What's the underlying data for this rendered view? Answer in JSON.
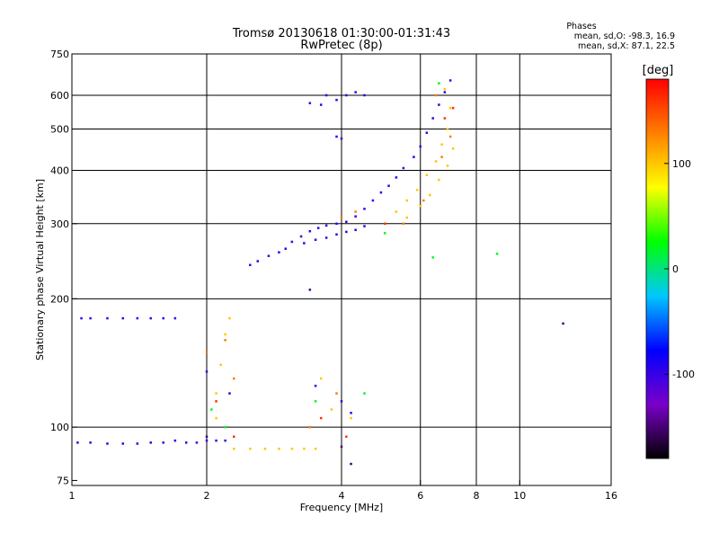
{
  "chart_data": {
    "type": "scatter",
    "title": "Tromsø 20130618 01:30:00-01:31:43",
    "subtitle": "RwPretec (8p)",
    "xlabel": "Frequency [MHz]",
    "ylabel": "Stationary phase Virtual Height [km]",
    "x_scale": "log",
    "y_scale": "log",
    "xlim": [
      1,
      16
    ],
    "ylim": [
      73,
      750
    ],
    "x_ticks": [
      1,
      2,
      4,
      6,
      8,
      10,
      16
    ],
    "y_ticks": [
      75,
      100,
      200,
      300,
      400,
      500,
      600,
      750
    ],
    "grid": true,
    "stats": {
      "heading": "Phases",
      "o_mode": "mean, sd,O: -98.3, 16.9",
      "x_mode": "mean, sd,X:  87.1, 22.5"
    },
    "colorbar": {
      "label": "[deg]",
      "range": [
        -180,
        180
      ],
      "ticks": [
        -100,
        0,
        100
      ],
      "colors": [
        "#000000",
        "#7a00c8",
        "#0000ff",
        "#00c8ff",
        "#00ff00",
        "#ffff00",
        "#ff8000",
        "#ff0000"
      ]
    },
    "series": [
      {
        "phase_deg": -100,
        "points": [
          [
            1.03,
            92
          ],
          [
            1.1,
            92
          ],
          [
            1.2,
            91.5
          ],
          [
            1.3,
            91.5
          ],
          [
            1.4,
            91.5
          ],
          [
            1.5,
            92
          ],
          [
            1.6,
            92
          ],
          [
            1.7,
            93
          ],
          [
            1.8,
            92
          ],
          [
            1.9,
            92
          ],
          [
            2.0,
            93
          ],
          [
            2.1,
            93
          ],
          [
            2.2,
            93
          ],
          [
            1.05,
            180
          ],
          [
            1.1,
            180
          ],
          [
            1.2,
            180
          ],
          [
            1.3,
            180
          ],
          [
            1.4,
            180
          ],
          [
            1.5,
            180
          ],
          [
            1.6,
            180
          ],
          [
            1.7,
            180
          ],
          [
            2.5,
            240
          ],
          [
            2.6,
            245
          ],
          [
            2.75,
            252
          ],
          [
            2.9,
            257
          ],
          [
            3.0,
            262
          ],
          [
            3.1,
            272
          ],
          [
            3.25,
            280
          ],
          [
            3.4,
            288
          ],
          [
            3.55,
            293
          ],
          [
            3.7,
            297
          ],
          [
            3.9,
            300
          ],
          [
            4.1,
            303
          ],
          [
            4.3,
            312
          ],
          [
            4.5,
            325
          ],
          [
            4.7,
            340
          ],
          [
            4.9,
            355
          ],
          [
            5.1,
            368
          ],
          [
            5.3,
            385
          ],
          [
            5.5,
            405
          ],
          [
            5.8,
            430
          ],
          [
            6.0,
            455
          ],
          [
            6.2,
            490
          ],
          [
            6.4,
            530
          ],
          [
            6.6,
            570
          ],
          [
            6.8,
            610
          ],
          [
            7.0,
            650
          ],
          [
            3.3,
            270
          ],
          [
            3.5,
            275
          ],
          [
            3.7,
            278
          ],
          [
            3.9,
            283
          ],
          [
            4.1,
            287
          ],
          [
            4.3,
            290
          ],
          [
            4.5,
            296
          ],
          [
            3.4,
            575
          ],
          [
            3.6,
            570
          ],
          [
            3.7,
            600
          ],
          [
            3.9,
            585
          ],
          [
            4.1,
            600
          ],
          [
            4.3,
            610
          ],
          [
            4.5,
            600
          ],
          [
            3.9,
            480
          ],
          [
            4.0,
            475
          ],
          [
            4.2,
            108
          ],
          [
            4.0,
            115
          ],
          [
            3.5,
            125
          ],
          [
            2.25,
            120
          ],
          [
            2.0,
            135
          ]
        ]
      },
      {
        "phase_deg": 100,
        "points": [
          [
            2.3,
            89
          ],
          [
            2.5,
            89
          ],
          [
            2.7,
            89
          ],
          [
            2.9,
            89
          ],
          [
            3.1,
            89
          ],
          [
            3.3,
            89
          ],
          [
            3.5,
            89
          ],
          [
            2.1,
            120
          ],
          [
            2.15,
            140
          ],
          [
            2.2,
            165
          ],
          [
            2.25,
            180
          ],
          [
            2.1,
            105
          ],
          [
            3.8,
            110
          ],
          [
            4.2,
            105
          ],
          [
            3.6,
            130
          ],
          [
            5.3,
            320
          ],
          [
            5.6,
            340
          ],
          [
            5.9,
            360
          ],
          [
            6.2,
            390
          ],
          [
            6.5,
            420
          ],
          [
            6.7,
            460
          ],
          [
            6.9,
            500
          ],
          [
            7.0,
            560
          ],
          [
            6.8,
            620
          ],
          [
            5.6,
            310
          ],
          [
            6.0,
            330
          ],
          [
            6.3,
            350
          ],
          [
            6.6,
            380
          ],
          [
            6.9,
            410
          ],
          [
            7.1,
            450
          ]
        ]
      },
      {
        "phase_deg": 130,
        "points": [
          [
            2.0,
            150
          ],
          [
            2.2,
            160
          ],
          [
            2.3,
            130
          ],
          [
            3.4,
            100
          ],
          [
            3.9,
            120
          ],
          [
            5.5,
            300
          ],
          [
            6.1,
            340
          ],
          [
            6.7,
            430
          ],
          [
            7.0,
            480
          ],
          [
            6.5,
            600
          ],
          [
            4.0,
            310
          ],
          [
            4.3,
            320
          ]
        ]
      },
      {
        "phase_deg": 160,
        "points": [
          [
            2.1,
            115
          ],
          [
            2.3,
            95
          ],
          [
            3.6,
            105
          ],
          [
            4.1,
            95
          ],
          [
            5.0,
            300
          ],
          [
            6.8,
            530
          ],
          [
            7.1,
            560
          ]
        ]
      },
      {
        "phase_deg": 20,
        "points": [
          [
            2.05,
            110
          ],
          [
            2.2,
            100
          ],
          [
            3.5,
            115
          ],
          [
            4.5,
            120
          ],
          [
            6.6,
            640
          ],
          [
            5.0,
            285
          ],
          [
            6.4,
            250
          ],
          [
            8.9,
            255
          ]
        ]
      },
      {
        "phase_deg": -150,
        "points": [
          [
            2.0,
            95
          ],
          [
            3.4,
            210
          ],
          [
            4.0,
            90
          ],
          [
            4.2,
            82
          ],
          [
            12.5,
            175
          ]
        ]
      }
    ]
  }
}
